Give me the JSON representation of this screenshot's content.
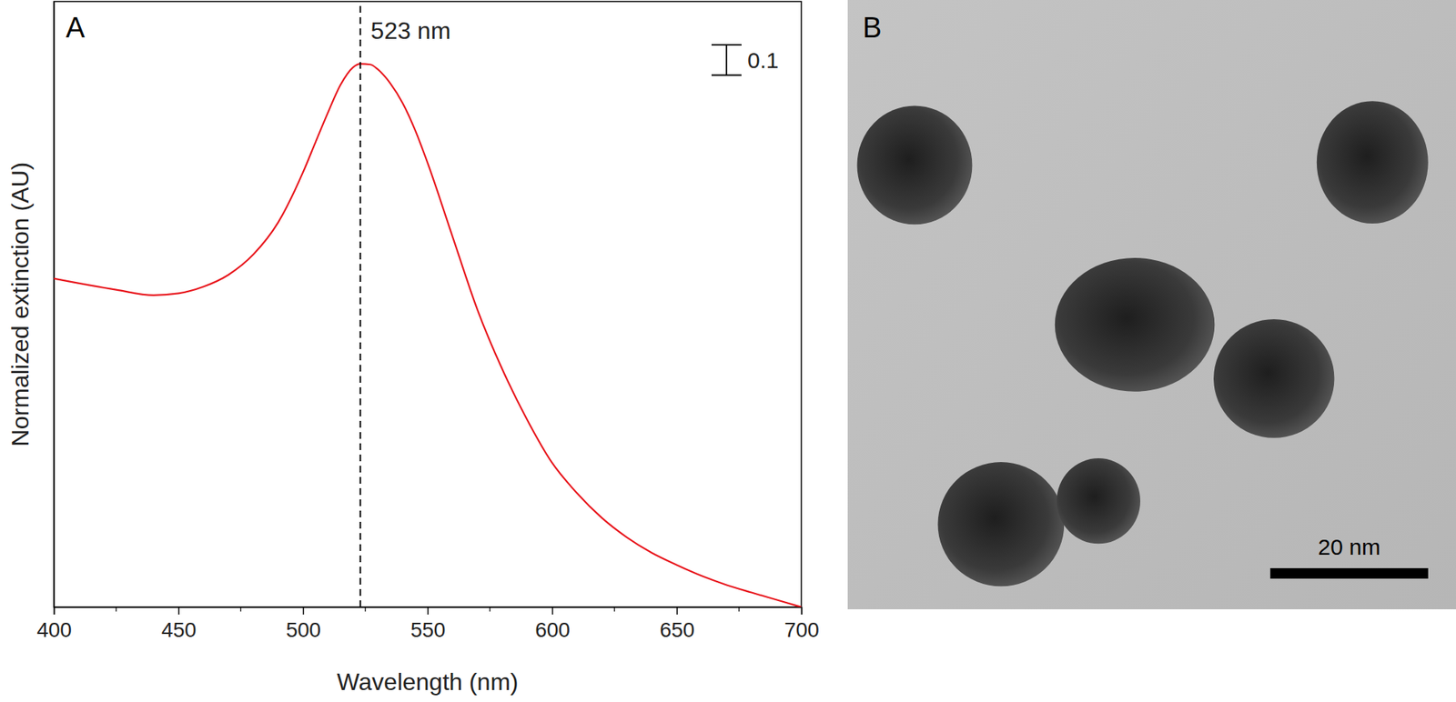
{
  "chart_data": {
    "type": "line",
    "panel_label": "A",
    "x_label": "Wavelength (nm)",
    "y_label": "Normalized extinction (AU)",
    "x": [
      400,
      425,
      440,
      450,
      460,
      470,
      480,
      490,
      500,
      505,
      510,
      515,
      520,
      523,
      527,
      530,
      535,
      540,
      545,
      550,
      560,
      570,
      580,
      590,
      600,
      610,
      620,
      630,
      640,
      650,
      660,
      670,
      680,
      690,
      700
    ],
    "series": [
      {
        "color": "#e8141b",
        "values": [
          1.085,
          1.048,
          1.03,
          1.036,
          1.058,
          1.097,
          1.164,
          1.27,
          1.436,
          1.535,
          1.633,
          1.724,
          1.782,
          1.794,
          1.792,
          1.776,
          1.73,
          1.664,
          1.575,
          1.467,
          1.224,
          0.982,
          0.785,
          0.618,
          0.476,
          0.376,
          0.294,
          0.23,
          0.179,
          0.139,
          0.103,
          0.073,
          0.048,
          0.024,
          0.0
        ]
      }
    ],
    "xlim": [
      400,
      700
    ],
    "xticks": [
      400,
      450,
      500,
      550,
      600,
      650,
      700
    ],
    "x_minor_ticks": [
      425,
      475,
      525,
      575,
      625,
      675
    ],
    "ylim": [
      0,
      2
    ],
    "yticks": [],
    "tick_labels": "x",
    "annotations": [
      {
        "x": 523,
        "label": "523 nm"
      }
    ],
    "scale_bar": {
      "value": 0.1
    }
  },
  "image_panel": {
    "panel_label": "B",
    "scale_bar_label": "20 nm"
  }
}
